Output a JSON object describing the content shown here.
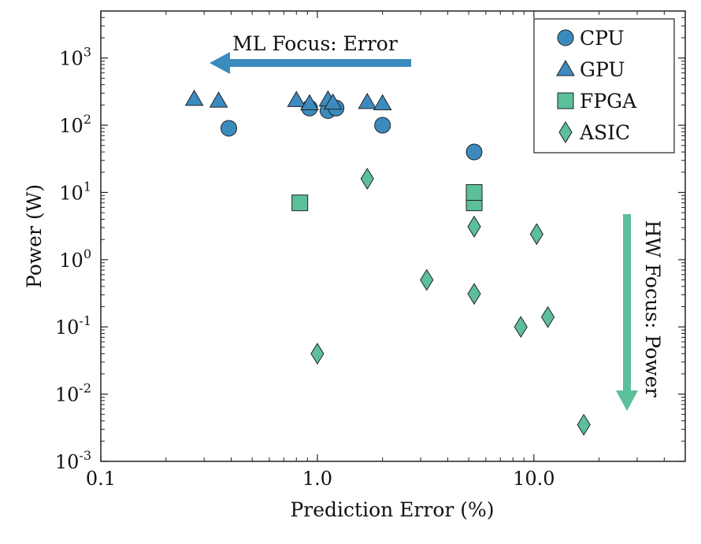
{
  "chart_data": {
    "type": "scatter",
    "xscale": "log",
    "yscale": "log",
    "xlim": [
      0.1,
      50
    ],
    "ylim": [
      0.001,
      5000
    ],
    "xlabel": "Prediction Error (%)",
    "ylabel": "Power (W)",
    "x_ticks": [
      "0.1",
      "1.0",
      "10.0"
    ],
    "y_ticks": [
      {
        "base": "10",
        "exp": "-3"
      },
      {
        "base": "10",
        "exp": "-2"
      },
      {
        "base": "10",
        "exp": "-1"
      },
      {
        "base": "10",
        "exp": "0"
      },
      {
        "base": "10",
        "exp": "1"
      },
      {
        "base": "10",
        "exp": "2"
      },
      {
        "base": "10",
        "exp": "3"
      }
    ],
    "legend_position": "top-right",
    "grid": false,
    "series": [
      {
        "name": "CPU",
        "marker": "circle",
        "color": "#3b8bbf",
        "points": [
          {
            "x": 0.39,
            "y": 90
          },
          {
            "x": 0.92,
            "y": 180
          },
          {
            "x": 1.12,
            "y": 165
          },
          {
            "x": 1.22,
            "y": 180
          },
          {
            "x": 2.0,
            "y": 100
          },
          {
            "x": 5.3,
            "y": 40
          }
        ]
      },
      {
        "name": "GPU",
        "marker": "triangle",
        "color": "#3b8bbf",
        "points": [
          {
            "x": 0.27,
            "y": 245
          },
          {
            "x": 0.35,
            "y": 230
          },
          {
            "x": 0.8,
            "y": 235
          },
          {
            "x": 0.92,
            "y": 210
          },
          {
            "x": 1.12,
            "y": 240
          },
          {
            "x": 1.18,
            "y": 215
          },
          {
            "x": 1.7,
            "y": 220
          },
          {
            "x": 2.0,
            "y": 210
          }
        ]
      },
      {
        "name": "FPGA",
        "marker": "square",
        "color": "#5bbf9a",
        "points": [
          {
            "x": 0.83,
            "y": 7
          },
          {
            "x": 5.3,
            "y": 7
          },
          {
            "x": 5.3,
            "y": 10
          }
        ]
      },
      {
        "name": "ASIC",
        "marker": "diamond",
        "color": "#5bbf9a",
        "points": [
          {
            "x": 1.0,
            "y": 0.04
          },
          {
            "x": 1.7,
            "y": 16
          },
          {
            "x": 3.2,
            "y": 0.5
          },
          {
            "x": 5.3,
            "y": 3.1
          },
          {
            "x": 5.3,
            "y": 0.31
          },
          {
            "x": 8.7,
            "y": 0.1
          },
          {
            "x": 10.3,
            "y": 2.4
          },
          {
            "x": 11.6,
            "y": 0.14
          },
          {
            "x": 17.0,
            "y": 0.0035
          }
        ]
      }
    ],
    "annotations": {
      "ml_focus": {
        "text": "ML Focus: Error",
        "direction": "left",
        "color": "#3b8bbf"
      },
      "hw_focus": {
        "text": "HW Focus: Power",
        "direction": "down",
        "color": "#5bbf9a"
      }
    }
  }
}
